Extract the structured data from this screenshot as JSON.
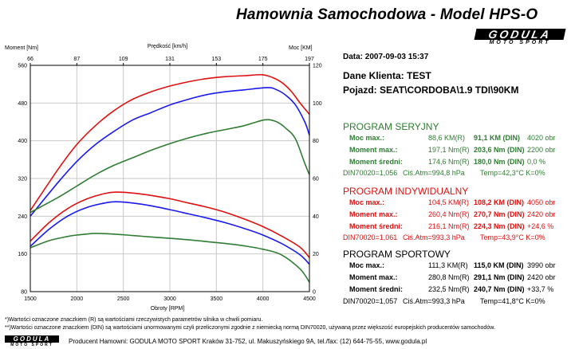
{
  "header": {
    "title": "Hamownia Samochodowa   -   Model HPS-O",
    "logo_main": "GODULA",
    "logo_sub": "MOTO SPORT"
  },
  "info": {
    "date": "Data: 2007-09-03  15:37",
    "client": "Dane Klienta: TEST",
    "vehicle": "Pojazd: SEAT\\CORDOBA\\1.9 TDI\\90KM"
  },
  "programs": [
    {
      "title": "PROGRAM SERYJNY",
      "color": "#2e7d32",
      "rows": [
        {
          "label": "Moc max.:",
          "km": "88,6 KM(R)",
          "din": "91,1 KM (DIN)",
          "rpm": "4020 obr"
        },
        {
          "label": "Moment max.:",
          "km": "197,1 Nm(R)",
          "din": "203,6 Nm (DIN)",
          "rpm": "2200 obr"
        },
        {
          "label": "Moment średni:",
          "km": "174,6 Nm(R)",
          "din": "180,0 Nm (DIN)",
          "rpm": "0,0 %"
        }
      ],
      "din_line": {
        "din": "DIN70020=1,056",
        "atm": "Ciś.Atm=994,8 hPa",
        "temp": "Temp=42,3°C  K=0%"
      }
    },
    {
      "title": "PROGRAM INDYWIDUALNY",
      "color": "#1a1aee",
      "rows": [
        {
          "label": "Moc max.:",
          "km": "104,5 KM(R)",
          "din": "108,2 KM (DIN)",
          "rpm": "4050 obr"
        },
        {
          "label": "Moment max.:",
          "km": "260,4 Nm(R)",
          "din": "270,7 Nm (DIN)",
          "rpm": "2420 obr"
        },
        {
          "label": "Moment średni:",
          "km": "216,1 Nm(R)",
          "din": "224,3 Nm (DIN)",
          "rpm": "+24,6 %"
        }
      ],
      "din_line": {
        "din": "DIN70020=1,061",
        "atm": "Ciś.Atm=993,3 hPa",
        "temp": "Temp=43,9°C  K=0%"
      }
    },
    {
      "title": "PROGRAM SPORTOWY",
      "color": "#e01010",
      "rows": [
        {
          "label": "Moc max.:",
          "km": "111,3 KM(R)",
          "din": "115,0 KM (DIN)",
          "rpm": "3990 obr"
        },
        {
          "label": "Moment max.:",
          "km": "280,8 Nm(R)",
          "din": "291,1 Nm (DIN)",
          "rpm": "2420 obr"
        },
        {
          "label": "Moment średni:",
          "km": "232,5 Nm(R)",
          "din": "240,7 Nm (DIN)",
          "rpm": "+33,7 %"
        }
      ],
      "din_line": {
        "din": "DIN70020=1,057",
        "atm": "Ciś.Atm=993,3 hPa",
        "temp": "Temp=41,8°C  K=0%"
      }
    }
  ],
  "footnotes": {
    "note1": "*)Wartości oznaczone znaczkiem (R) są wartościami rzeczywistych parametrów silnika w chwili pomiaru.",
    "note2": "**)Wartości oznaczone znaczkiem (DIN) są wartościami unormowanymi czyli przeliczonymi zgodnie z niemiecką normą DIN70020, używaną przez większość europejskich producentów samochodów.",
    "producer": "Producent Hamowni: GODULA MOTO SPORT Kraków 31-752, ul. Makuszyńskiego 9A, tel./fax: (12) 644-75-55, www.godula.pl"
  },
  "chart_data": {
    "type": "line",
    "x_label": "Obroty [RPM]",
    "x_ticks": [
      "1500",
      "2000",
      "2500",
      "3000",
      "3500",
      "4000",
      "4500"
    ],
    "xlim": [
      1500,
      4500
    ],
    "top_label": "Prędkość [km/h]",
    "top_ticks": [
      "66",
      "87",
      "109",
      "131",
      "153",
      "175",
      "197"
    ],
    "left_label": "Moment [Nm]",
    "left_ticks": [
      "80",
      "160",
      "240",
      "320",
      "400",
      "480",
      "560"
    ],
    "left_lim": [
      80,
      560
    ],
    "right_label": "Moc [KM]",
    "right_ticks": [
      "0",
      "20",
      "40",
      "60",
      "80",
      "100",
      "120"
    ],
    "right_lim": [
      0,
      120
    ],
    "grid": true,
    "series": [
      {
        "color": "#e01010",
        "axis": "right",
        "x": [
          1500,
          1800,
          2000,
          2200,
          2400,
          2600,
          2800,
          3000,
          3200,
          3400,
          3600,
          3800,
          3990,
          4100,
          4200,
          4300,
          4400,
          4500
        ],
        "y": [
          43,
          65,
          78,
          88,
          96,
          102,
          106,
          109,
          111.3,
          113,
          114,
          114.5,
          115,
          113.6,
          111,
          106.5,
          100,
          94
        ]
      },
      {
        "color": "#1a1aee",
        "axis": "right",
        "x": [
          1500,
          1800,
          2000,
          2200,
          2400,
          2600,
          2800,
          3000,
          3200,
          3400,
          3600,
          3800,
          4050,
          4150,
          4250,
          4350,
          4450,
          4500
        ],
        "y": [
          40,
          58,
          69,
          78,
          85,
          91,
          95,
          99,
          102,
          104.5,
          106,
          107,
          108.2,
          107,
          104,
          99,
          90,
          83
        ]
      },
      {
        "color": "#2e7d32",
        "axis": "right",
        "x": [
          1500,
          1800,
          2000,
          2200,
          2400,
          2600,
          2800,
          3000,
          3200,
          3400,
          3600,
          3800,
          4020,
          4150,
          4250,
          4350,
          4450,
          4500
        ],
        "y": [
          42,
          50,
          56,
          62,
          67,
          71,
          75,
          78.5,
          81.5,
          84,
          86,
          88,
          91.1,
          90,
          86.5,
          81,
          68,
          62
        ]
      },
      {
        "color": "#e01010",
        "axis": "left",
        "x": [
          1500,
          1700,
          1900,
          2100,
          2300,
          2420,
          2600,
          2800,
          3000,
          3200,
          3400,
          3600,
          3800,
          4000,
          4200,
          4400,
          4500
        ],
        "y": [
          187,
          226,
          256,
          276,
          288,
          291.1,
          289,
          284,
          277,
          268,
          259,
          248,
          234,
          218,
          198,
          174,
          152
        ]
      },
      {
        "color": "#1a1aee",
        "axis": "left",
        "x": [
          1500,
          1700,
          1900,
          2100,
          2300,
          2420,
          2600,
          2800,
          3000,
          3200,
          3400,
          3600,
          3800,
          4000,
          4200,
          4400,
          4500
        ],
        "y": [
          176,
          212,
          240,
          258,
          268,
          270.7,
          268,
          262,
          254,
          245,
          236,
          226,
          214,
          200,
          182,
          158,
          138
        ]
      },
      {
        "color": "#2e7d32",
        "axis": "left",
        "x": [
          1500,
          1700,
          1900,
          2000,
          2100,
          2200,
          2400,
          2600,
          2800,
          3000,
          3200,
          3400,
          3600,
          3800,
          4000,
          4200,
          4400,
          4500
        ],
        "y": [
          173,
          188,
          197,
          200,
          202,
          203.6,
          202,
          199,
          196,
          193,
          190,
          186,
          182,
          177,
          170,
          158,
          128,
          100
        ]
      }
    ]
  }
}
